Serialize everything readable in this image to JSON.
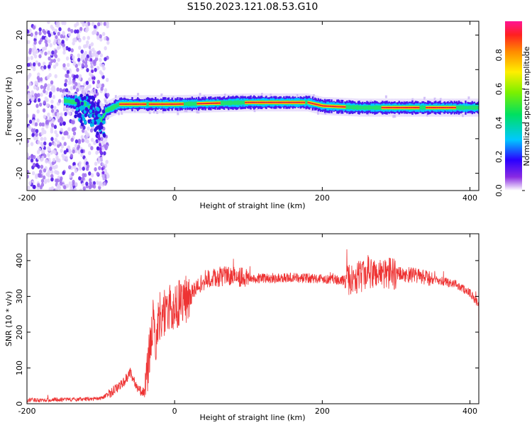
{
  "title": "S150.2023.121.08.53.G10",
  "chart_data": [
    {
      "type": "heatmap",
      "xlabel": "Height of straight line (km)",
      "ylabel": "Frequency (Hz)",
      "xlim": [
        -200,
        412
      ],
      "ylim": [
        -25,
        24
      ],
      "x_ticks": [
        -200,
        0,
        200,
        400
      ],
      "y_ticks": [
        20,
        10,
        0,
        -10,
        -20
      ],
      "colorbar": {
        "label": "Normalized spectral amplitude",
        "range": [
          0,
          1
        ],
        "ticks": [
          0.0,
          0.2,
          0.4,
          0.6,
          0.8
        ]
      },
      "ridge": [
        {
          "x": -200,
          "f": 1
        },
        {
          "x": -150,
          "f": 1
        },
        {
          "x": -120,
          "f": 0
        },
        {
          "x": -100,
          "f": -5
        },
        {
          "x": -95,
          "f": -2
        },
        {
          "x": -75,
          "f": 0
        },
        {
          "x": 0,
          "f": 0
        },
        {
          "x": 100,
          "f": 0.5
        },
        {
          "x": 180,
          "f": 0.5
        },
        {
          "x": 200,
          "f": -0.5
        },
        {
          "x": 250,
          "f": -1
        },
        {
          "x": 300,
          "f": -1
        },
        {
          "x": 412,
          "f": -1
        }
      ]
    },
    {
      "type": "line",
      "xlabel": "Height of straight line (km)",
      "ylabel": "SNR (10 * v/v)",
      "xlim": [
        -200,
        412
      ],
      "ylim": [
        0,
        475
      ],
      "x_ticks": [
        -200,
        0,
        200,
        400
      ],
      "y_ticks": [
        0,
        100,
        200,
        300,
        400
      ],
      "color": "#ee3333",
      "x": [
        -200,
        -150,
        -100,
        -80,
        -65,
        -60,
        -50,
        -40,
        -35,
        -30,
        -25,
        -20,
        -10,
        0,
        20,
        40,
        60,
        80,
        100,
        150,
        200,
        230,
        250,
        270,
        290,
        320,
        350,
        380,
        400,
        412
      ],
      "y": [
        10,
        12,
        14,
        40,
        70,
        90,
        40,
        30,
        120,
        230,
        180,
        250,
        260,
        270,
        300,
        345,
        355,
        358,
        350,
        352,
        350,
        345,
        355,
        365,
        365,
        360,
        348,
        335,
        310,
        275
      ]
    }
  ]
}
